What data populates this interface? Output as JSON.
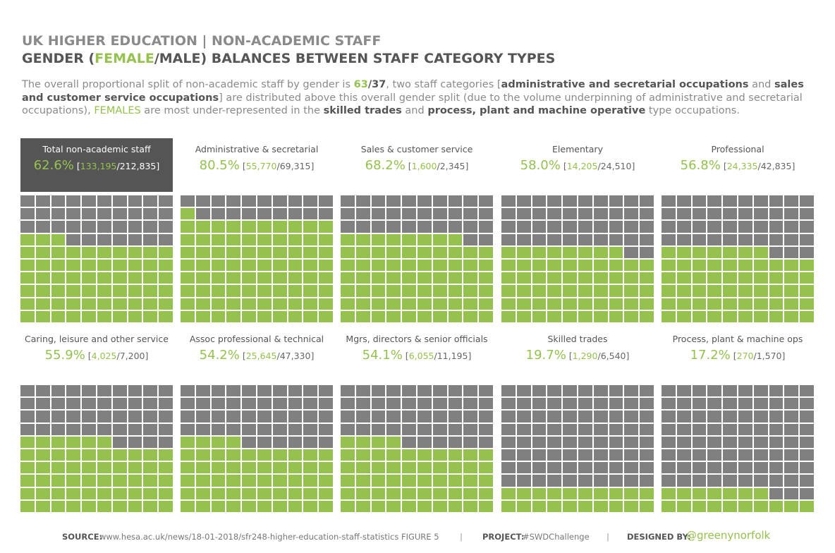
{
  "header": {
    "title_line1": "UK HIGHER EDUCATION | NON-ACADEMIC STAFF",
    "title_line2_prefix": "GENDER (",
    "title_line2_female": "FEMALE",
    "title_line2_suffix": "/MALE) BALANCES BETWEEN STAFF CATEGORY TYPES"
  },
  "intro": {
    "t1": "The overall proportional split of non-academic staff by gender is ",
    "female_share": "63",
    "slash": "/",
    "male_share": "37",
    "t2": ", two staff categories [",
    "b1": "administrative and secretarial occupations",
    "t3": " and ",
    "b2": "sales and customer service occupations",
    "t4": "] are distributed above this overall gender split (due to the volume underpinning of administrative and secretarial occupations), ",
    "females": "FEMALES",
    "t5": " are most under-represented in the ",
    "b3": "skilled trades",
    "t6": " and ",
    "b4": "process, plant and machine operative",
    "t7": " type occupations."
  },
  "colors": {
    "female": "#95c14e",
    "male": "#808080",
    "highlight_bg": "#555555"
  },
  "chart_data": {
    "type": "waffle",
    "grid": {
      "rows": 10,
      "cols": 10
    },
    "panels": [
      {
        "category": "Total non-academic staff",
        "pct_label": "62.6%",
        "female": 133195,
        "female_label": "133,195",
        "total_label": "212,835",
        "highlighted": true
      },
      {
        "category": "Administrative & secretarial",
        "pct_label": "80.5%",
        "female": 55770,
        "female_label": "55,770",
        "total_label": "69,315"
      },
      {
        "category": "Sales & customer service",
        "pct_label": "68.2%",
        "female": 1600,
        "female_label": "1,600",
        "total_label": "2,345"
      },
      {
        "category": "Elementary",
        "pct_label": "58.0%",
        "female": 14205,
        "female_label": "14,205",
        "total_label": "24,510"
      },
      {
        "category": "Professional",
        "pct_label": "56.8%",
        "female": 24335,
        "female_label": "24,335",
        "total_label": "42,835"
      },
      {
        "category": "Caring, leisure and other service",
        "pct_label": "55.9%",
        "female": 4025,
        "female_label": "4,025",
        "total_label": "7,200"
      },
      {
        "category": "Assoc professional & technical",
        "pct_label": "54.2%",
        "female": 25645,
        "female_label": "25,645",
        "total_label": "47,330"
      },
      {
        "category": "Mgrs, directors & senior officials",
        "pct_label": "54.1%",
        "female": 6055,
        "female_label": "6,055",
        "total_label": "11,195"
      },
      {
        "category": "Skilled trades",
        "pct_label": "19.7%",
        "female": 1290,
        "female_label": "1,290",
        "total_label": "6,540"
      },
      {
        "category": "Process, plant & machine ops",
        "pct_label": "17.2%",
        "female": 270,
        "female_label": "270",
        "total_label": "1,570"
      }
    ],
    "female_cells": [
      63,
      81,
      68,
      58,
      57,
      56,
      54,
      54,
      20,
      17
    ]
  },
  "footer": {
    "source_label": "SOURCE:",
    "source_value": "www.hesa.ac.uk/news/18-01-2018/sfr248-higher-education-staff-statistics FIGURE 5",
    "sep": "|",
    "project_label": "PROJECT:",
    "project_value": "#SWDChallenge",
    "designed_label": "DESIGNED BY:",
    "designed_value": "@greenynorfolk"
  }
}
